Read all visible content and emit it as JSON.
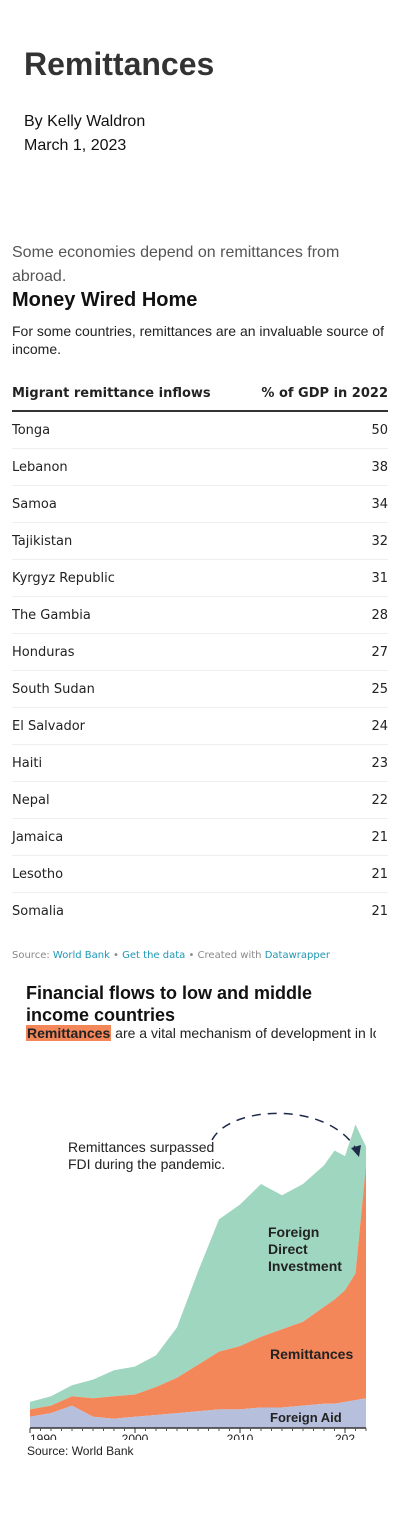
{
  "article": {
    "title": "Remittances",
    "author": "By Kelly Waldron",
    "date": "March 1, 2023",
    "intro": "Some economies depend on remittances from abroad."
  },
  "table_chart": {
    "title": "Money Wired Home",
    "description": "For some countries, remittances are an invaluable source of income.",
    "col1": "Migrant remittance inflows",
    "col2": "% of GDP in 2022",
    "rows": [
      {
        "country": "Tonga",
        "value": "50"
      },
      {
        "country": "Lebanon",
        "value": "38"
      },
      {
        "country": "Samoa",
        "value": "34"
      },
      {
        "country": "Tajikistan",
        "value": "32"
      },
      {
        "country": "Kyrgyz Republic",
        "value": "31"
      },
      {
        "country": "The Gambia",
        "value": "28"
      },
      {
        "country": "Honduras",
        "value": "27"
      },
      {
        "country": "South Sudan",
        "value": "25"
      },
      {
        "country": "El Salvador",
        "value": "24"
      },
      {
        "country": "Haiti",
        "value": "23"
      },
      {
        "country": "Nepal",
        "value": "22"
      },
      {
        "country": "Jamaica",
        "value": "21"
      },
      {
        "country": "Lesotho",
        "value": "21"
      },
      {
        "country": "Somalia",
        "value": "21"
      }
    ],
    "source_label": "Source:",
    "source_link": "World Bank",
    "sep1": "•",
    "get_data": "Get the data",
    "sep2": "•",
    "created_with": "Created with",
    "datawrapper": "Datawrapper"
  },
  "area_chart": {
    "title": "Financial flows to low and middle income countries",
    "desc_highlight": "Remittances",
    "desc_rest": " are a vital mechanism of development in low and middle income countries.",
    "annotation_line1": "Remittances surpassed",
    "annotation_line2": "FDI during the pandemic.",
    "label_fdi_1": "Foreign",
    "label_fdi_2": "Direct",
    "label_fdi_3": "Investment",
    "label_remit": "Remittances",
    "label_aid": "Foreign Aid",
    "source": "Source: World Bank",
    "colors": {
      "fdi": "#9fd6c0",
      "remit": "#f4875a",
      "aid": "#b6bfdc",
      "axis": "#333333"
    }
  },
  "chart_data": {
    "type": "area",
    "title": "Financial flows to low and middle income countries",
    "xlabel": "",
    "ylabel": "",
    "x_ticks": [
      "1990",
      "2000",
      "2010",
      "202"
    ],
    "x": [
      1990,
      1992,
      1994,
      1996,
      1998,
      2000,
      2002,
      2004,
      2006,
      2008,
      2010,
      2012,
      2014,
      2016,
      2018,
      2019,
      2020,
      2021,
      2022
    ],
    "stacking": "stacked",
    "series": [
      {
        "name": "Foreign Aid",
        "values": [
          6,
          8,
          12,
          6,
          5,
          6,
          7,
          8,
          9,
          10,
          10,
          11,
          11,
          12,
          13,
          13,
          14,
          15,
          16
        ]
      },
      {
        "name": "Remittances",
        "values": [
          4,
          4,
          5,
          10,
          12,
          12,
          15,
          19,
          25,
          31,
          34,
          38,
          42,
          45,
          52,
          56,
          60,
          68,
          125
        ]
      },
      {
        "name": "Foreign Direct Investment",
        "values": [
          4,
          5,
          6,
          10,
          14,
          15,
          17,
          27,
          50,
          71,
          76,
          82,
          72,
          74,
          76,
          80,
          72,
          80,
          10
        ]
      }
    ],
    "ylim": [
      0,
      160
    ],
    "xlim": [
      1990,
      2022
    ],
    "grid": false,
    "legend": "inline-labels"
  }
}
